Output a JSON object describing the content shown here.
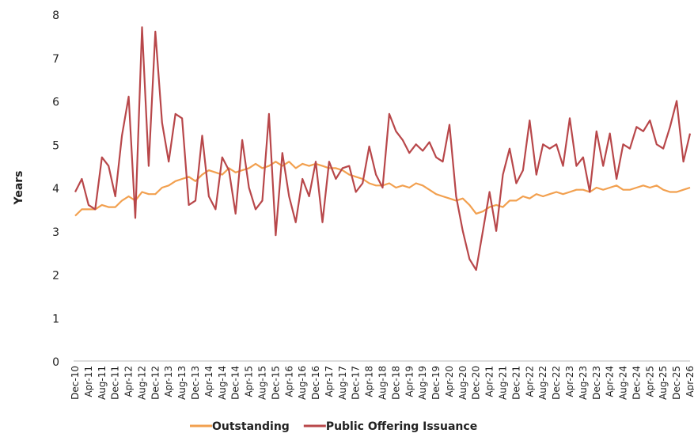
{
  "chart_data": {
    "type": "line",
    "y_label": "Years",
    "categories": [
      "Dec-10",
      null,
      "Apr-11",
      null,
      "Aug-11",
      null,
      "Dec-11",
      null,
      "Apr-12",
      null,
      "Aug-12",
      null,
      "Dec-12",
      null,
      "Apr-13",
      null,
      "Aug-13",
      null,
      "Dec-13",
      null,
      "Apr-14",
      null,
      "Aug-14",
      null,
      "Dec-14",
      null,
      "Apr-15",
      null,
      "Aug-15",
      null,
      "Dec-15",
      null,
      "Apr-16",
      null,
      "Aug-16",
      null,
      "Dec-16",
      null,
      "Apr-17",
      null,
      "Aug-17",
      null,
      "Dec-17",
      null,
      "Apr-18",
      null,
      "Aug-18",
      null,
      "Dec-18",
      null,
      "Apr-19",
      null,
      "Aug-19",
      null,
      "Dec-19",
      null,
      "Apr-20",
      null,
      "Aug-20",
      null,
      "Dec-20",
      null,
      "Apr-21",
      null,
      "Aug-21",
      null,
      "Dec-21",
      null,
      "Apr-22",
      null,
      "Aug-22",
      null,
      "Dec-22",
      null,
      "Apr-23",
      null,
      "Aug-23",
      null,
      "Dec-23",
      null,
      "Apr-24",
      null,
      "Aug-24",
      null,
      "Dec-24",
      null,
      "Apr-25",
      null,
      "Aug-25",
      null,
      "Dec-25",
      null,
      "Apr-26"
    ],
    "series": [
      {
        "name": "Outstanding",
        "color": "#f2a04f",
        "values": [
          3.35,
          3.5,
          3.5,
          3.5,
          3.6,
          3.55,
          3.55,
          3.7,
          3.8,
          3.7,
          3.9,
          3.85,
          3.85,
          4.0,
          4.05,
          4.15,
          4.2,
          4.25,
          4.15,
          4.3,
          4.4,
          4.35,
          4.3,
          4.45,
          4.35,
          4.4,
          4.45,
          4.55,
          4.45,
          4.5,
          4.6,
          4.5,
          4.6,
          4.45,
          4.55,
          4.5,
          4.55,
          4.5,
          4.45,
          4.45,
          4.4,
          4.3,
          4.25,
          4.2,
          4.1,
          4.05,
          4.05,
          4.1,
          4.0,
          4.05,
          4.0,
          4.1,
          4.05,
          3.95,
          3.85,
          3.8,
          3.75,
          3.7,
          3.75,
          3.6,
          3.4,
          3.45,
          3.55,
          3.6,
          3.55,
          3.7,
          3.7,
          3.8,
          3.75,
          3.85,
          3.8,
          3.85,
          3.9,
          3.85,
          3.9,
          3.95,
          3.95,
          3.9,
          4.0,
          3.95,
          4.0,
          4.05,
          3.95,
          3.95,
          4.0,
          4.05,
          4.0,
          4.05,
          3.95,
          3.9,
          3.9,
          3.95,
          4.0
        ]
      },
      {
        "name": "Public Offering Issuance",
        "color": "#b8474a",
        "values": [
          3.9,
          4.2,
          3.6,
          3.5,
          4.7,
          4.5,
          3.8,
          5.2,
          6.1,
          3.3,
          7.7,
          4.5,
          7.6,
          5.5,
          4.6,
          5.7,
          5.6,
          3.6,
          3.7,
          5.2,
          3.8,
          3.5,
          4.7,
          4.4,
          3.4,
          5.1,
          4.0,
          3.5,
          3.7,
          5.7,
          2.9,
          4.8,
          3.8,
          3.2,
          4.2,
          3.8,
          4.6,
          3.2,
          4.6,
          4.2,
          4.45,
          4.5,
          3.9,
          4.1,
          4.95,
          4.3,
          4.0,
          5.7,
          5.3,
          5.1,
          4.8,
          5.0,
          4.85,
          5.05,
          4.7,
          4.6,
          5.45,
          3.8,
          3.0,
          2.35,
          2.1,
          3.0,
          3.9,
          3.0,
          4.3,
          4.9,
          4.1,
          4.4,
          5.55,
          4.3,
          5.0,
          4.9,
          5.0,
          4.5,
          5.6,
          4.5,
          4.7,
          3.9,
          5.3,
          4.5,
          5.25,
          4.2,
          5.0,
          4.9,
          5.4,
          5.3,
          5.55,
          5.0,
          4.9,
          5.4,
          6.0,
          4.6,
          5.25
        ]
      }
    ],
    "ylim": [
      0,
      8
    ],
    "yticks": [
      0,
      1,
      2,
      3,
      4,
      5,
      6,
      7,
      8
    ]
  }
}
